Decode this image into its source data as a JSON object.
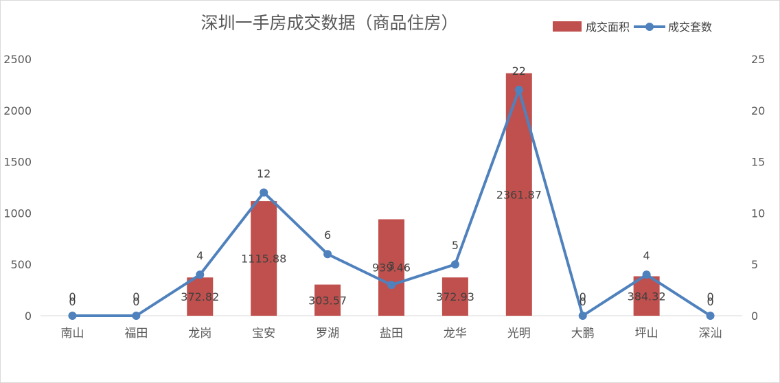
{
  "chart_data": {
    "type": "bar",
    "title": "深圳一手房成交数据（商品住房）",
    "categories": [
      "南山",
      "福田",
      "龙岗",
      "宝安",
      "罗湖",
      "盐田",
      "龙华",
      "光明",
      "大鹏",
      "坪山",
      "深汕"
    ],
    "series": [
      {
        "name": "成交面积",
        "type": "bar",
        "axis": "left",
        "color": "#c0504d",
        "values": [
          0,
          0,
          372.82,
          1115.88,
          303.57,
          939.46,
          372.93,
          2361.87,
          0,
          384.32,
          0
        ],
        "labels": [
          "0",
          "0",
          "372.82",
          "1115.88",
          "303.57",
          "939.46",
          "372.93",
          "2361.87",
          "0",
          "384.32",
          "0"
        ]
      },
      {
        "name": "成交套数",
        "type": "line",
        "axis": "right",
        "color": "#4f81bd",
        "values": [
          0,
          0,
          4,
          12,
          6,
          3,
          5,
          22,
          0,
          4,
          0
        ],
        "labels": [
          "0",
          "0",
          "4",
          "12",
          "6",
          "3",
          "5",
          "22",
          "0",
          "4",
          "0"
        ]
      }
    ],
    "y_left": {
      "min": 0,
      "max": 2500,
      "ticks": [
        "0",
        "500",
        "1000",
        "1500",
        "2000",
        "2500"
      ]
    },
    "y_right": {
      "min": 0,
      "max": 25,
      "ticks": [
        "0",
        "5",
        "10",
        "15",
        "20",
        "25"
      ]
    },
    "grid": false,
    "legend_position": "top-right"
  }
}
